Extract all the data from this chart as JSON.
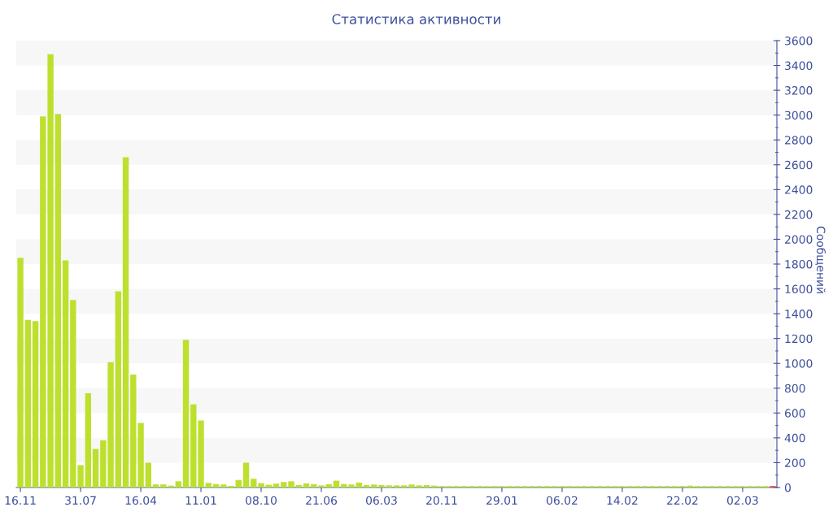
{
  "chart_data": {
    "type": "bar",
    "title": "Статистика активности",
    "ylabel": "Сообщений",
    "categories": [
      "16.11",
      null,
      null,
      null,
      null,
      null,
      null,
      null,
      "31.07",
      null,
      null,
      null,
      null,
      null,
      null,
      null,
      "16.04",
      null,
      null,
      null,
      null,
      null,
      null,
      null,
      "11.01",
      null,
      null,
      null,
      null,
      null,
      null,
      null,
      "08.10",
      null,
      null,
      null,
      null,
      null,
      null,
      null,
      "21.06",
      null,
      null,
      null,
      null,
      null,
      null,
      null,
      "06.03",
      null,
      null,
      null,
      null,
      null,
      null,
      null,
      "20.11",
      null,
      null,
      null,
      null,
      null,
      null,
      null,
      "29.01",
      null,
      null,
      null,
      null,
      null,
      null,
      null,
      "06.02",
      null,
      null,
      null,
      null,
      null,
      null,
      null,
      "14.02",
      null,
      null,
      null,
      null,
      null,
      null,
      null,
      "22.02",
      null,
      null,
      null,
      null,
      null,
      null,
      null,
      "02.03",
      null,
      null,
      null,
      null
    ],
    "values": [
      1850,
      1350,
      1340,
      2990,
      3490,
      3010,
      1830,
      1510,
      180,
      760,
      310,
      380,
      1010,
      1580,
      2660,
      910,
      520,
      200,
      25,
      25,
      15,
      50,
      1190,
      670,
      540,
      37,
      28,
      24,
      13,
      61,
      200,
      70,
      35,
      22,
      31,
      44,
      50,
      20,
      33,
      26,
      17,
      26,
      55,
      28,
      24,
      39,
      20,
      24,
      20,
      17,
      17,
      17,
      24,
      17,
      20,
      15,
      12,
      12,
      12,
      12,
      12,
      12,
      12,
      12,
      12,
      12,
      12,
      12,
      12,
      12,
      12,
      12,
      12,
      12,
      12,
      12,
      12,
      12,
      12,
      12,
      12,
      12,
      12,
      12,
      12,
      12,
      12,
      12,
      12,
      15,
      12,
      12,
      12,
      12,
      12,
      12,
      12,
      12,
      12,
      12,
      12
    ],
    "colors": [
      "#bde02e",
      "#bde02e",
      "#bde02e",
      "#bde02e",
      "#bde02e",
      "#bde02e",
      "#bde02e",
      "#bde02e",
      "#bde02e",
      "#bde02e",
      "#bde02e",
      "#bde02e",
      "#bde02e",
      "#bde02e",
      "#bde02e",
      "#bde02e",
      "#bde02e",
      "#bde02e",
      "#bde02e",
      "#bde02e",
      "#bde02e",
      "#bde02e",
      "#bde02e",
      "#bde02e",
      "#bde02e",
      "#bde02e",
      "#bde02e",
      "#bde02e",
      "#bde02e",
      "#bde02e",
      "#bde02e",
      "#bde02e",
      "#bde02e",
      "#bde02e",
      "#bde02e",
      "#bde02e",
      "#bde02e",
      "#bde02e",
      "#bde02e",
      "#bde02e",
      "#bde02e",
      "#bde02e",
      "#bde02e",
      "#bde02e",
      "#bde02e",
      "#bde02e",
      "#bde02e",
      "#bde02e",
      "#bde02e",
      "#bde02e",
      "#bde02e",
      "#bde02e",
      "#bde02e",
      "#bde02e",
      "#bde02e",
      "#bde02e",
      "#bde02e",
      "#bde02e",
      "#bde02e",
      "#bde02e",
      "#bde02e",
      "#bde02e",
      "#bde02e",
      "#bde02e",
      "#bde02e",
      "#bde02e",
      "#bde02e",
      "#bde02e",
      "#bde02e",
      "#bde02e",
      "#bde02e",
      "#bde02e",
      "#bde02e",
      "#bde02e",
      "#bde02e",
      "#bde02e",
      "#bde02e",
      "#bde02e",
      "#bde02e",
      "#bde02e",
      "#bde02e",
      "#bde02e",
      "#bde02e",
      "#bde02e",
      "#bde02e",
      "#bde02e",
      "#bde02e",
      "#bde02e",
      "#bde02e",
      "#bde02e",
      "#bde02e",
      "#bde02e",
      "#bde02e",
      "#bde02e",
      "#bde02e",
      "#bde02e",
      "#bde02e",
      "#bde02e",
      "#bde02e",
      "#bde02e",
      "#e8502a"
    ],
    "ylim": [
      0,
      3600
    ],
    "yticks": [
      0,
      200,
      400,
      600,
      800,
      1000,
      1200,
      1400,
      1600,
      1800,
      2000,
      2200,
      2400,
      2600,
      2800,
      3000,
      3200,
      3400,
      3600
    ],
    "legend": false
  }
}
